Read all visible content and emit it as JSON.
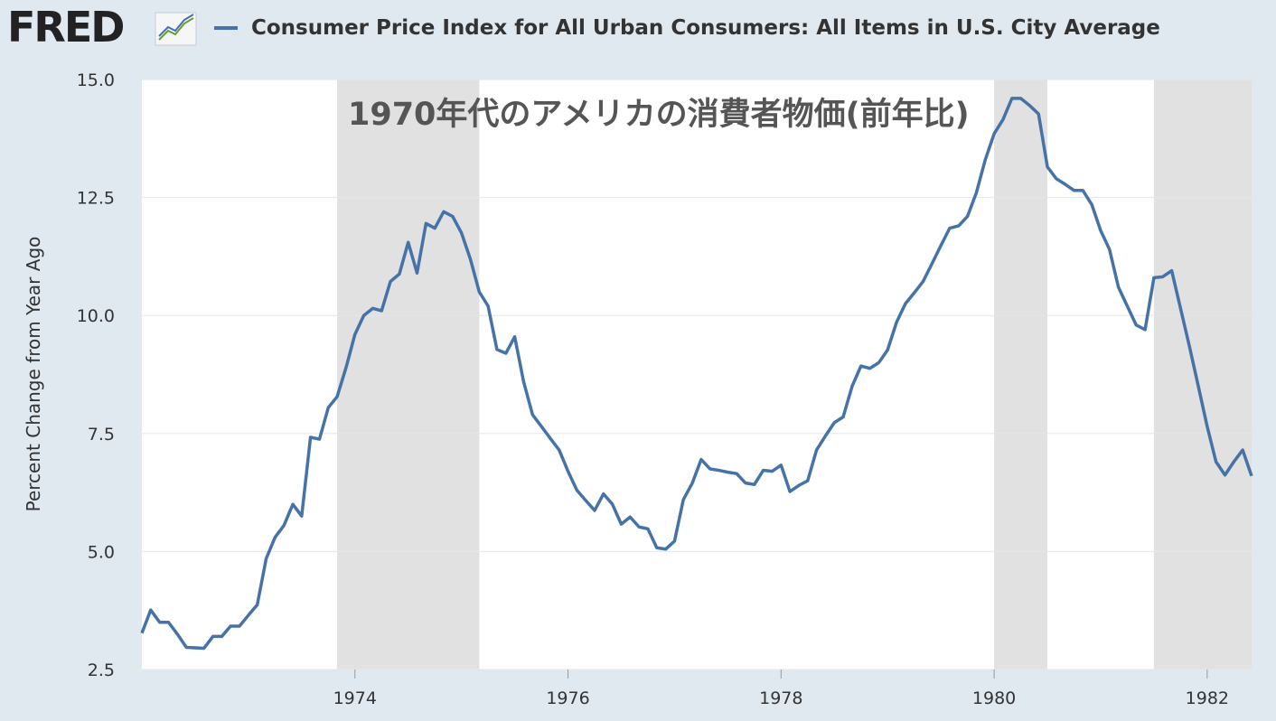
{
  "chart_data": {
    "type": "line",
    "logo": "FRED",
    "title": "Consumer Price Index for All Urban Consumers: All Items in U.S. City Average",
    "annotation": "1970年代のアメリカの消費者物価(前年比)",
    "y_label": "Percent Change from Year Ago",
    "x": [
      1972,
      1972.083,
      1972.167,
      1972.25,
      1972.333,
      1972.417,
      1972.5,
      1972.583,
      1972.667,
      1972.75,
      1972.833,
      1972.917,
      1973,
      1973.083,
      1973.167,
      1973.25,
      1973.333,
      1973.417,
      1973.5,
      1973.583,
      1973.667,
      1973.75,
      1973.833,
      1973.917,
      1974,
      1974.083,
      1974.167,
      1974.25,
      1974.333,
      1974.417,
      1974.5,
      1974.583,
      1974.667,
      1974.75,
      1974.833,
      1974.917,
      1975,
      1975.083,
      1975.167,
      1975.25,
      1975.333,
      1975.417,
      1975.5,
      1975.583,
      1975.667,
      1975.75,
      1975.833,
      1975.917,
      1976,
      1976.083,
      1976.167,
      1976.25,
      1976.333,
      1976.417,
      1976.5,
      1976.583,
      1976.667,
      1976.75,
      1976.833,
      1976.917,
      1977,
      1977.083,
      1977.167,
      1977.25,
      1977.333,
      1977.417,
      1977.5,
      1977.583,
      1977.667,
      1977.75,
      1977.833,
      1977.917,
      1978,
      1978.083,
      1978.167,
      1978.25,
      1978.333,
      1978.417,
      1978.5,
      1978.583,
      1978.667,
      1978.75,
      1978.833,
      1978.917,
      1979,
      1979.083,
      1979.167,
      1979.25,
      1979.333,
      1979.417,
      1979.5,
      1979.583,
      1979.667,
      1979.75,
      1979.833,
      1979.917,
      1980,
      1980.083,
      1980.167,
      1980.25,
      1980.333,
      1980.417,
      1980.5,
      1980.583,
      1980.667,
      1980.75,
      1980.833,
      1980.917,
      1981,
      1981.083,
      1981.167,
      1981.25,
      1981.333,
      1981.417,
      1981.5,
      1981.583,
      1981.667,
      1981.75,
      1981.833,
      1981.917,
      1982,
      1982.083,
      1982.167,
      1982.25,
      1982.333,
      1982.417
    ],
    "series": [
      {
        "name": "Consumer Price Index for All Urban Consumers: All Items in U.S. City Average",
        "color": "#4572a7",
        "values": [
          3.27,
          3.76,
          3.5,
          3.5,
          3.25,
          2.97,
          2.96,
          2.95,
          3.2,
          3.2,
          3.42,
          3.42,
          3.65,
          3.87,
          4.85,
          5.3,
          5.55,
          6.0,
          5.75,
          7.42,
          7.38,
          8.05,
          8.28,
          8.9,
          9.6,
          10.0,
          10.15,
          10.1,
          10.72,
          10.88,
          11.55,
          10.9,
          11.95,
          11.85,
          12.2,
          12.1,
          11.75,
          11.2,
          10.5,
          10.2,
          9.28,
          9.2,
          9.55,
          8.6,
          7.9,
          7.65,
          7.4,
          7.15,
          6.7,
          6.3,
          6.08,
          5.87,
          6.22,
          6.0,
          5.58,
          5.73,
          5.52,
          5.48,
          5.08,
          5.05,
          5.22,
          6.1,
          6.45,
          6.95,
          6.75,
          6.72,
          6.68,
          6.65,
          6.45,
          6.42,
          6.72,
          6.7,
          6.83,
          6.27,
          6.4,
          6.5,
          7.15,
          7.45,
          7.73,
          7.85,
          8.5,
          8.93,
          8.88,
          9.0,
          9.27,
          9.85,
          10.25,
          10.48,
          10.72,
          11.1,
          11.48,
          11.85,
          11.9,
          12.1,
          12.6,
          13.3,
          13.85,
          14.15,
          14.6,
          14.6,
          14.45,
          14.27,
          13.15,
          12.9,
          12.78,
          12.65,
          12.65,
          12.35,
          11.8,
          11.4,
          10.6,
          10.2,
          9.8,
          9.7,
          10.8,
          10.82,
          10.95,
          10.15,
          9.35,
          8.5,
          7.65,
          6.9,
          6.62,
          6.9,
          7.15,
          6.6
        ]
      }
    ],
    "recessions": [
      [
        1973.833,
        1975.167
      ],
      [
        1980.0,
        1980.5
      ],
      [
        1981.5,
        1982.417
      ]
    ],
    "recession_color": "#e1e1e1",
    "xlim": [
      1972,
      1982.417
    ],
    "xticks": [
      1974,
      1976,
      1978,
      1980,
      1982
    ],
    "ylim": [
      2.5,
      15
    ],
    "yticks": [
      {
        "value": 15,
        "label": "15.0"
      },
      12.5,
      {
        "value": 10,
        "label": "10.0"
      },
      7.5,
      {
        "value": 5,
        "label": "5.0"
      },
      2.5
    ],
    "grid": true
  }
}
